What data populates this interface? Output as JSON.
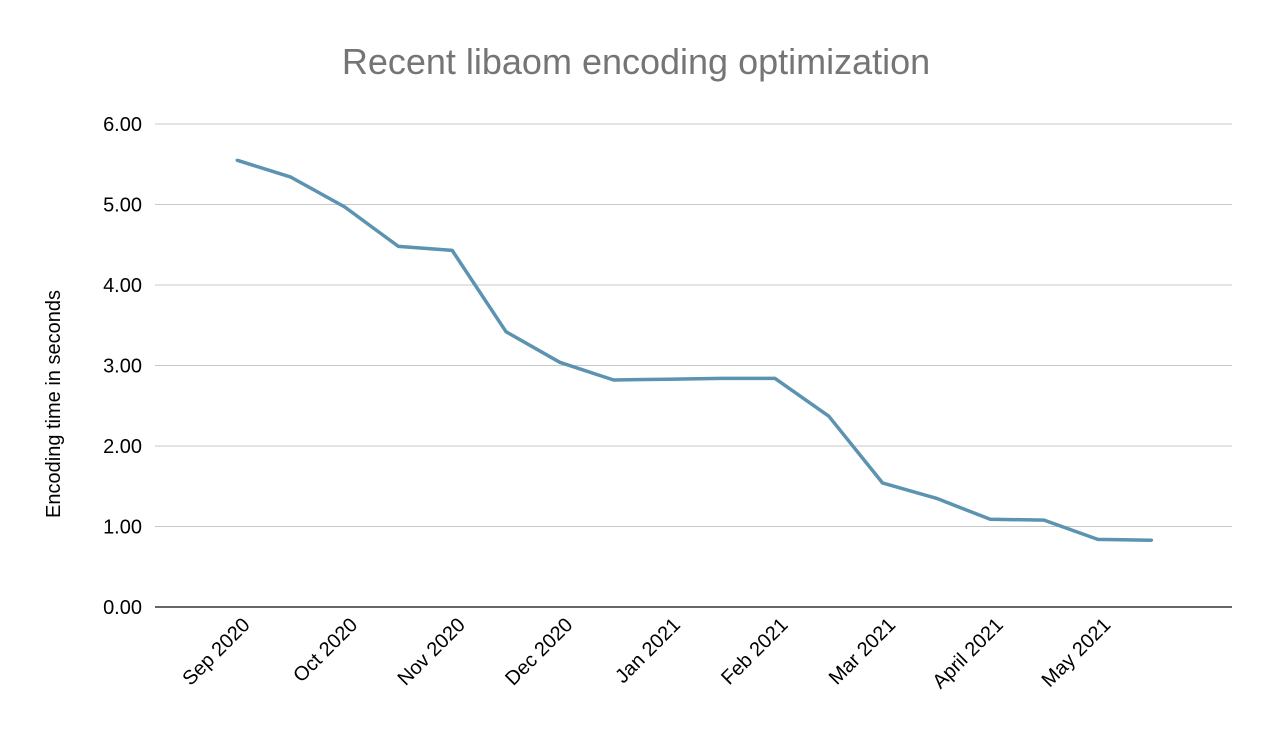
{
  "chart_data": {
    "type": "line",
    "title": "Recent libaom encoding optimization",
    "xlabel": "",
    "ylabel": "Encoding time in seconds",
    "ylim": [
      0,
      6
    ],
    "yticks": [
      "0.00",
      "1.00",
      "2.00",
      "3.00",
      "4.00",
      "5.00",
      "6.00"
    ],
    "x_tick_labels": [
      "Sep 2020",
      "Oct 2020",
      "Nov 2020",
      "Dec 2020",
      "Jan 2021",
      "Feb 2021",
      "Mar 2021",
      "April 2021",
      "May 2021"
    ],
    "grid": true,
    "legend": "none",
    "series": [
      {
        "color": "#5b93b0",
        "values": [
          5.55,
          5.34,
          4.97,
          4.48,
          4.43,
          3.42,
          3.04,
          2.82,
          2.83,
          2.84,
          2.84,
          2.37,
          1.54,
          1.35,
          1.09,
          1.08,
          0.84,
          0.83
        ]
      }
    ]
  }
}
